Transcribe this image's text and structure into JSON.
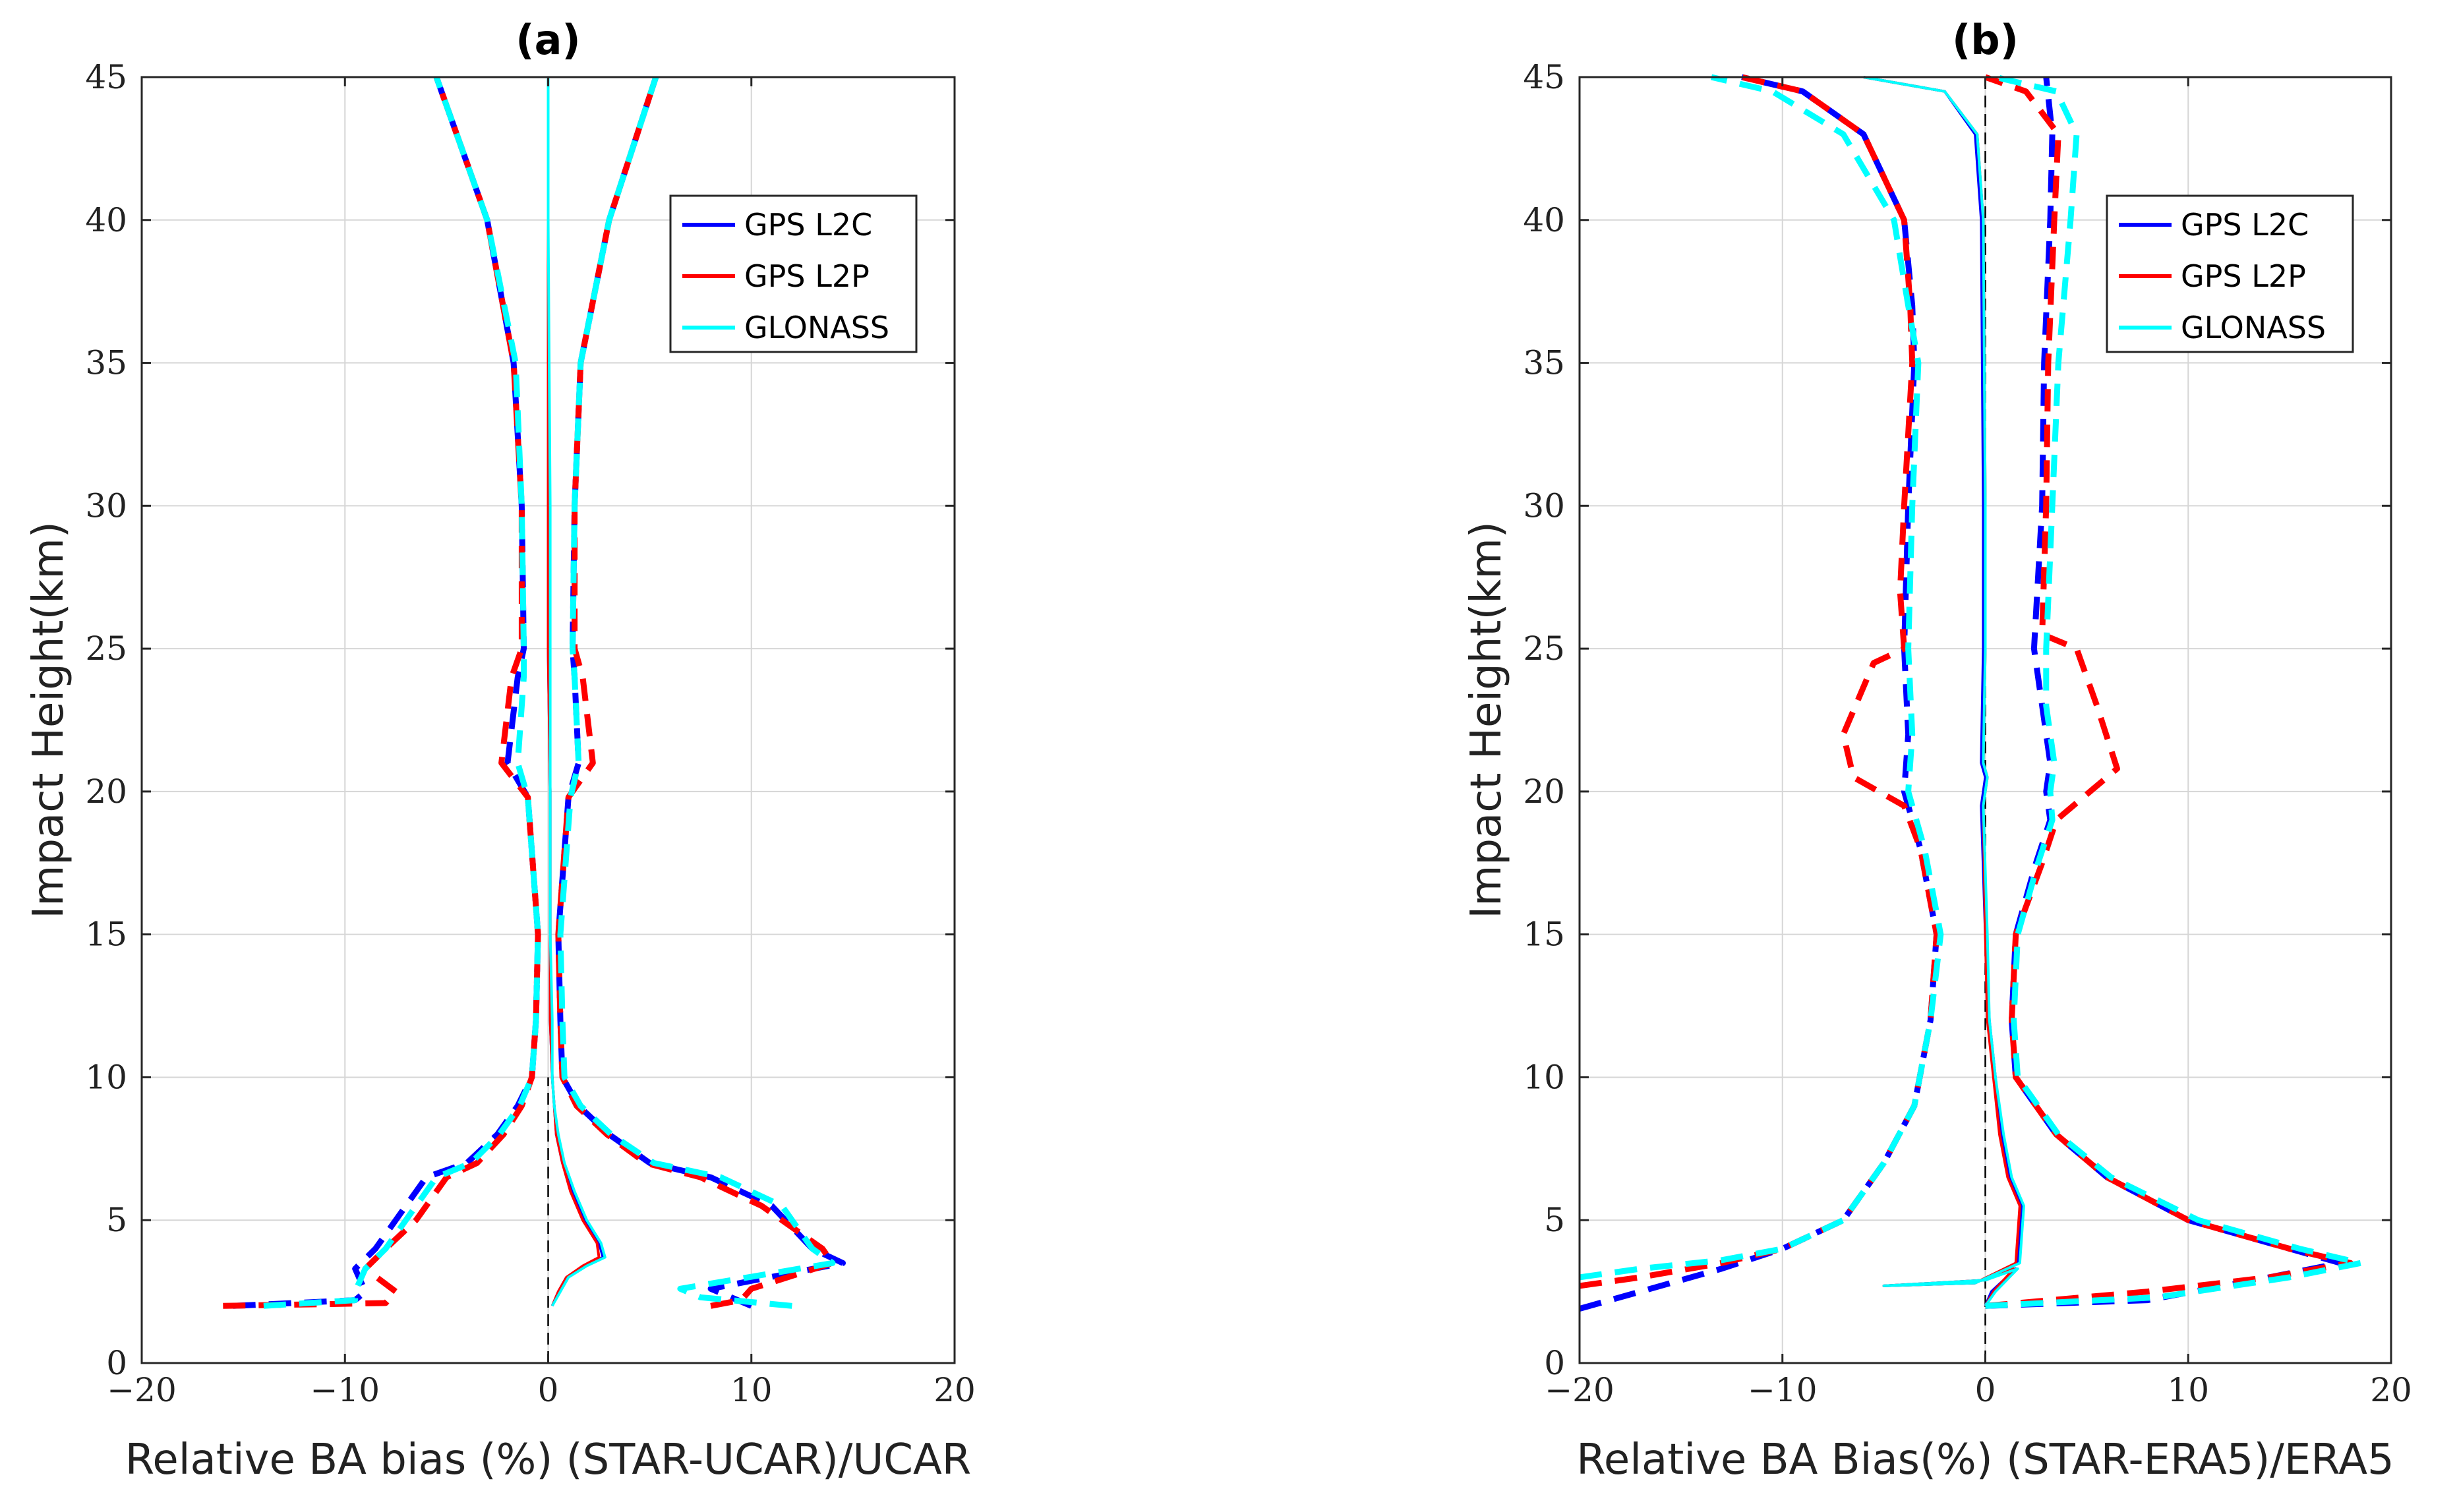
{
  "colors": {
    "gps_l2c": "#0000ff",
    "gps_l2p": "#ff0000",
    "glonass": "#00ffff"
  },
  "chart_data": [
    {
      "type": "line",
      "panel": "(a)",
      "title": "(a)",
      "xlabel": "Relative BA bias (%) (STAR-UCAR)/UCAR",
      "ylabel": "Impact Height(km)",
      "xlim": [
        -20,
        20
      ],
      "ylim": [
        0,
        45
      ],
      "xticks": [
        -20,
        -10,
        0,
        10,
        20
      ],
      "yticks": [
        0,
        5,
        10,
        15,
        20,
        25,
        30,
        35,
        40,
        45
      ],
      "grid": true,
      "legend_position": "top-right",
      "series": [
        {
          "name": "GPS L2C",
          "color": "#0000ff",
          "style": "solid",
          "in_legend": true,
          "x": [
            0.2,
            0.5,
            0.9,
            1.8,
            2.7,
            2.5,
            1.8,
            1.2,
            0.7,
            0.4,
            0.3,
            0.2,
            0.1,
            0.1,
            0.1,
            0.0,
            0.0,
            0.0,
            0.0
          ],
          "y": [
            2.0,
            2.5,
            3.0,
            3.4,
            3.7,
            4.2,
            5.0,
            6.0,
            7.0,
            8.0,
            9.0,
            10.0,
            12.0,
            15.0,
            20.0,
            25.0,
            30.0,
            40.0,
            45.0
          ]
        },
        {
          "name": "GPS L2P",
          "color": "#ff0000",
          "style": "solid",
          "in_legend": true,
          "x": [
            0.2,
            0.5,
            0.9,
            1.7,
            2.5,
            2.4,
            1.7,
            1.1,
            0.7,
            0.4,
            0.3,
            0.2,
            0.1,
            0.1,
            0.1,
            0.0,
            0.0,
            0.0,
            0.0
          ],
          "y": [
            2.0,
            2.5,
            3.0,
            3.4,
            3.7,
            4.2,
            5.0,
            6.0,
            7.0,
            8.0,
            9.0,
            10.0,
            12.0,
            15.0,
            20.0,
            25.0,
            30.0,
            40.0,
            45.0
          ]
        },
        {
          "name": "GLONASS",
          "color": "#00ffff",
          "style": "solid",
          "in_legend": true,
          "x": [
            0.2,
            0.6,
            1.0,
            1.9,
            2.8,
            2.6,
            1.9,
            1.3,
            0.8,
            0.5,
            0.3,
            0.2,
            0.2,
            0.1,
            0.1,
            0.1,
            0.1,
            0.0,
            0.0
          ],
          "y": [
            2.0,
            2.5,
            3.0,
            3.4,
            3.7,
            4.2,
            5.0,
            6.0,
            7.0,
            8.0,
            9.0,
            10.0,
            12.0,
            15.0,
            20.0,
            25.0,
            30.0,
            40.0,
            45.0
          ]
        },
        {
          "name": "GPS L2C (-std)",
          "color": "#0000ff",
          "style": "dashed",
          "in_legend": false,
          "x": [
            -15.5,
            -9.5,
            -9.0,
            -9.5,
            -8.5,
            -7.5,
            -6.0,
            -4.0,
            -2.5,
            -1.5,
            -0.8,
            -0.6,
            -0.5,
            -1.0,
            -2.0,
            -1.5,
            -1.2,
            -1.3,
            -1.7,
            -3.0,
            -5.5
          ],
          "y": [
            2.0,
            2.2,
            2.5,
            3.3,
            4.0,
            5.0,
            6.5,
            7.0,
            8.0,
            9.0,
            10.0,
            12.0,
            15.0,
            19.8,
            21.0,
            24.0,
            25.0,
            30.0,
            35.0,
            40.0,
            45.0
          ]
        },
        {
          "name": "GPS L2P (-std)",
          "color": "#ff0000",
          "style": "dashed",
          "in_legend": false,
          "x": [
            -16.0,
            -8.0,
            -7.5,
            -9.0,
            -8.0,
            -6.5,
            -5.0,
            -3.5,
            -2.2,
            -1.3,
            -0.8,
            -0.6,
            -0.5,
            -1.0,
            -2.3,
            -1.8,
            -1.3,
            -1.3,
            -1.7,
            -3.0,
            -5.5
          ],
          "y": [
            2.0,
            2.1,
            2.5,
            3.3,
            4.0,
            5.0,
            6.5,
            7.0,
            8.0,
            9.0,
            10.0,
            12.0,
            15.0,
            19.8,
            21.0,
            24.0,
            25.0,
            30.0,
            35.0,
            40.0,
            45.0
          ]
        },
        {
          "name": "GLONASS (-std)",
          "color": "#00ffff",
          "style": "dashed",
          "in_legend": false,
          "x": [
            -14.0,
            -9.5,
            -9.5,
            -9.0,
            -8.0,
            -7.0,
            -5.5,
            -3.8,
            -2.4,
            -1.4,
            -0.8,
            -0.6,
            -0.5,
            -1.0,
            -1.5,
            -1.2,
            -1.2,
            -1.3,
            -1.6,
            -3.0,
            -5.5
          ],
          "y": [
            2.0,
            2.2,
            2.5,
            3.3,
            4.0,
            5.0,
            6.5,
            7.0,
            8.0,
            9.0,
            10.0,
            12.0,
            15.0,
            19.8,
            21.0,
            24.0,
            25.0,
            30.0,
            35.0,
            40.0,
            45.0
          ]
        },
        {
          "name": "GPS L2C (+std)",
          "color": "#0000ff",
          "style": "dashed",
          "in_legend": false,
          "x": [
            10.0,
            9.0,
            8.0,
            14.5,
            13.0,
            11.0,
            8.0,
            5.0,
            3.0,
            1.5,
            0.7,
            0.6,
            0.5,
            1.0,
            1.5,
            1.3,
            1.2,
            1.3,
            1.6,
            3.0,
            5.3
          ],
          "y": [
            2.0,
            2.3,
            2.6,
            3.5,
            4.0,
            5.5,
            6.5,
            7.0,
            8.0,
            9.0,
            10.0,
            12.0,
            15.0,
            19.8,
            21.0,
            24.0,
            25.0,
            30.0,
            35.0,
            40.0,
            45.0
          ]
        },
        {
          "name": "GPS L2P (+std)",
          "color": "#ff0000",
          "style": "dashed",
          "in_legend": false,
          "x": [
            8.0,
            9.5,
            10.0,
            14.0,
            13.5,
            10.5,
            7.5,
            4.8,
            2.9,
            1.4,
            0.7,
            0.6,
            0.5,
            1.0,
            2.2,
            1.7,
            1.3,
            1.3,
            1.6,
            3.0,
            5.3
          ],
          "y": [
            2.0,
            2.2,
            2.6,
            3.5,
            4.0,
            5.5,
            6.5,
            7.0,
            8.0,
            9.0,
            10.0,
            12.0,
            15.0,
            19.8,
            21.0,
            24.0,
            25.0,
            30.0,
            35.0,
            40.0,
            45.0
          ]
        },
        {
          "name": "GLONASS (+std)",
          "color": "#00ffff",
          "style": "dashed",
          "in_legend": false,
          "x": [
            12.0,
            7.5,
            6.5,
            14.0,
            13.0,
            11.5,
            8.5,
            5.2,
            3.1,
            1.6,
            0.8,
            0.7,
            0.6,
            1.1,
            1.5,
            1.3,
            1.2,
            1.3,
            1.6,
            3.0,
            5.3
          ],
          "y": [
            2.0,
            2.3,
            2.6,
            3.5,
            4.0,
            5.5,
            6.5,
            7.0,
            8.0,
            9.0,
            10.0,
            12.0,
            15.0,
            19.8,
            21.0,
            24.0,
            25.0,
            30.0,
            35.0,
            40.0,
            45.0
          ]
        }
      ]
    },
    {
      "type": "line",
      "panel": "(b)",
      "title": "(b)",
      "xlabel": "Relative BA Bias(%) (STAR-ERA5)/ERA5",
      "ylabel": "Impact Height(km)",
      "xlim": [
        -20,
        20
      ],
      "ylim": [
        0,
        45
      ],
      "xticks": [
        -20,
        -10,
        0,
        10,
        20
      ],
      "yticks": [
        0,
        5,
        10,
        15,
        20,
        25,
        30,
        35,
        40,
        45
      ],
      "grid": true,
      "legend_position": "top-right",
      "series": [
        {
          "name": "GPS L2C",
          "color": "#0000ff",
          "style": "solid",
          "in_legend": true,
          "x": [
            0.0,
            0.3,
            1.5,
            0.0,
            -5.0,
            -0.5,
            1.6,
            1.8,
            1.2,
            0.8,
            0.5,
            0.2,
            0.0,
            -0.2,
            0.0,
            -0.2,
            -0.1,
            -0.1,
            -0.2,
            -0.5,
            -2.0,
            -6.0
          ],
          "y": [
            2.0,
            2.5,
            3.3,
            2.9,
            2.7,
            2.8,
            3.5,
            5.5,
            6.5,
            8.0,
            10.0,
            12.0,
            15.0,
            19.5,
            20.5,
            21.0,
            25.0,
            30.0,
            40.0,
            43.0,
            44.5,
            45.0
          ]
        },
        {
          "name": "GPS L2P",
          "color": "#ff0000",
          "style": "solid",
          "in_legend": true,
          "x": [
            0.0,
            0.4,
            1.4,
            0.0,
            -5.0,
            -0.5,
            1.5,
            1.7,
            1.1,
            0.7,
            0.4,
            0.1,
            0.0,
            -0.1,
            0.1,
            -0.1,
            0.0,
            0.0,
            -0.1,
            -0.4,
            -2.0,
            -6.0
          ],
          "y": [
            2.0,
            2.5,
            3.3,
            2.9,
            2.7,
            2.8,
            3.5,
            5.5,
            6.5,
            8.0,
            10.0,
            12.0,
            15.0,
            19.5,
            20.5,
            21.0,
            25.0,
            30.0,
            40.0,
            43.0,
            44.5,
            45.0
          ]
        },
        {
          "name": "GLONASS",
          "color": "#00ffff",
          "style": "solid",
          "in_legend": true,
          "x": [
            0.0,
            0.5,
            1.6,
            0.0,
            -5.0,
            -0.5,
            1.7,
            1.9,
            1.3,
            0.9,
            0.5,
            0.2,
            0.1,
            -0.1,
            0.1,
            -0.1,
            0.0,
            0.0,
            -0.1,
            -0.4,
            -2.0,
            -6.0
          ],
          "y": [
            2.0,
            2.5,
            3.3,
            2.9,
            2.7,
            2.8,
            3.5,
            5.5,
            6.5,
            8.0,
            10.0,
            12.0,
            15.0,
            19.5,
            20.5,
            21.0,
            25.0,
            30.0,
            40.0,
            43.0,
            44.5,
            45.0
          ]
        },
        {
          "name": "GPS L2C (-std)",
          "color": "#0000ff",
          "style": "dashed",
          "in_legend": false,
          "x": [
            -20.0,
            -17.0,
            -13.0,
            -10.0,
            -7.0,
            -5.0,
            -3.5,
            -2.7,
            -2.4,
            -3.2,
            -4.0,
            -3.8,
            -4.0,
            -3.8,
            -3.5,
            -3.6,
            -4.0,
            -6.0,
            -9.0,
            -12.0
          ],
          "y": [
            1.9,
            2.5,
            3.3,
            4.0,
            5.0,
            7.0,
            9.0,
            12.0,
            15.0,
            18.0,
            20.0,
            22.0,
            25.0,
            30.0,
            35.0,
            37.0,
            40.0,
            43.0,
            44.5,
            45.0
          ]
        },
        {
          "name": "GPS L2P (-std)",
          "color": "#ff0000",
          "style": "dashed",
          "in_legend": false,
          "x": [
            -20.0,
            -17.0,
            -13.0,
            -10.0,
            -7.0,
            -5.0,
            -3.5,
            -2.7,
            -2.4,
            -3.2,
            -4.0,
            -6.5,
            -7.0,
            -5.5,
            -4.0,
            -4.2,
            -4.0,
            -3.6,
            -3.7,
            -4.0,
            -6.0,
            -9.0,
            -12.0
          ],
          "y": [
            2.7,
            3.0,
            3.5,
            4.0,
            5.0,
            7.0,
            9.0,
            12.0,
            15.0,
            18.0,
            19.5,
            20.5,
            22.0,
            24.5,
            25.0,
            27.0,
            30.0,
            35.0,
            37.0,
            40.0,
            43.0,
            44.5,
            45.0
          ]
        },
        {
          "name": "GLONASS (-std)",
          "color": "#00ffff",
          "style": "dashed",
          "in_legend": false,
          "x": [
            -20.0,
            -17.0,
            -13.0,
            -10.0,
            -7.0,
            -5.0,
            -3.5,
            -2.7,
            -2.2,
            -3.0,
            -3.8,
            -3.6,
            -3.8,
            -3.6,
            -3.3,
            -3.8,
            -4.5,
            -7.0,
            -10.5,
            -13.5
          ],
          "y": [
            3.0,
            3.3,
            3.6,
            4.0,
            5.0,
            7.0,
            9.0,
            12.0,
            15.0,
            18.0,
            20.0,
            22.0,
            25.0,
            30.0,
            35.0,
            37.0,
            40.0,
            43.0,
            44.5,
            45.0
          ]
        },
        {
          "name": "GPS L2C (+std)",
          "color": "#0000ff",
          "style": "dashed",
          "in_legend": false,
          "x": [
            0.0,
            8.0,
            14.0,
            17.5,
            15.0,
            10.0,
            6.0,
            3.5,
            1.5,
            1.3,
            1.5,
            2.5,
            3.2,
            3.0,
            3.2,
            2.8,
            2.4,
            2.8,
            2.9,
            3.2,
            3.3,
            3.0
          ],
          "y": [
            2.0,
            2.2,
            3.0,
            3.5,
            4.0,
            5.0,
            6.5,
            8.0,
            10.0,
            12.0,
            15.0,
            17.5,
            19.0,
            20.0,
            21.0,
            23.0,
            25.0,
            30.0,
            35.0,
            40.0,
            43.0,
            45.0
          ]
        },
        {
          "name": "GPS L2P (+std)",
          "color": "#ff0000",
          "style": "dashed",
          "in_legend": false,
          "x": [
            0.0,
            8.0,
            14.0,
            18.0,
            15.0,
            10.0,
            6.0,
            3.5,
            1.5,
            1.3,
            1.5,
            2.8,
            3.5,
            6.5,
            5.5,
            4.5,
            2.8,
            3.0,
            3.1,
            3.4,
            3.6,
            2.0,
            0.0
          ],
          "y": [
            2.0,
            2.5,
            3.0,
            3.5,
            4.0,
            5.0,
            6.5,
            8.0,
            10.0,
            12.0,
            15.0,
            17.5,
            19.0,
            20.8,
            23.0,
            25.0,
            25.5,
            30.0,
            35.0,
            40.0,
            43.0,
            44.5,
            45.0
          ]
        },
        {
          "name": "GLONASS (+std)",
          "color": "#00ffff",
          "style": "dashed",
          "in_legend": false,
          "x": [
            0.0,
            8.5,
            15.0,
            18.5,
            15.5,
            10.5,
            6.2,
            3.6,
            1.6,
            1.4,
            1.6,
            2.6,
            3.3,
            3.2,
            3.4,
            3.0,
            3.0,
            3.3,
            3.6,
            4.2,
            4.5,
            3.5,
            0.5
          ],
          "y": [
            2.0,
            2.3,
            3.0,
            3.5,
            4.0,
            5.0,
            6.5,
            8.0,
            10.0,
            12.0,
            15.0,
            17.5,
            19.0,
            20.0,
            21.0,
            23.0,
            25.0,
            30.0,
            35.0,
            40.0,
            43.0,
            44.5,
            45.0
          ]
        }
      ]
    }
  ]
}
